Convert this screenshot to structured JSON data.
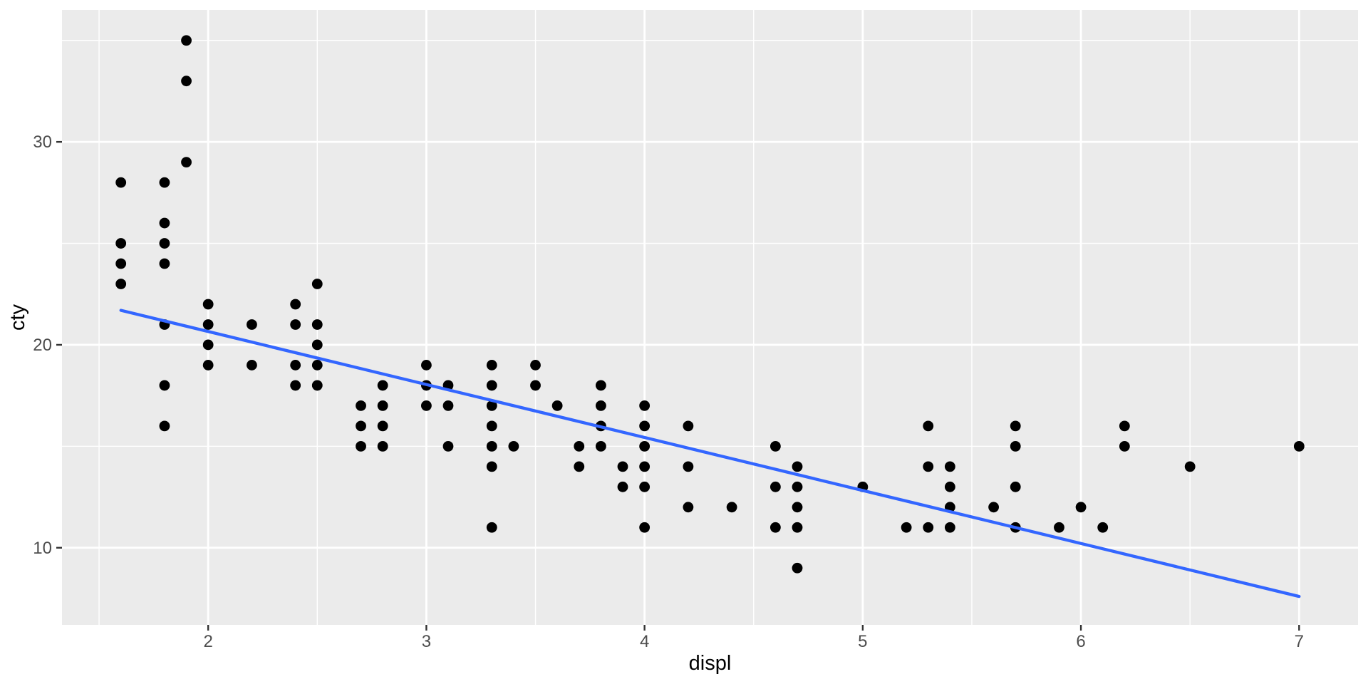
{
  "figure": {
    "background": "#FFFFFF",
    "panel_background": "#EBEBEB",
    "grid_major_color": "#FFFFFF",
    "grid_minor_color": "#FFFFFF",
    "tick_mark_color": "#333333",
    "tick_label_color": "#4D4D4D",
    "axis_title_color": "#000000"
  },
  "chart_data": {
    "type": "scatter",
    "title": "",
    "xlabel": "displ",
    "ylabel": "cty",
    "legend": "none",
    "grid": "on",
    "xlim": [
      1.33,
      7.27
    ],
    "ylim": [
      6.2,
      36.5
    ],
    "x_ticks": [
      2,
      3,
      4,
      5,
      6,
      7
    ],
    "y_ticks": [
      10,
      20,
      30
    ],
    "x_minor_ticks": [
      1.5,
      2.5,
      3.5,
      4.5,
      5.5,
      6.5
    ],
    "y_minor_ticks": [
      15,
      25,
      35
    ],
    "point_color": "#000000",
    "point_radius": 7.4,
    "points": [
      [
        1.6,
        28
      ],
      [
        1.6,
        25
      ],
      [
        1.6,
        24
      ],
      [
        1.6,
        23
      ],
      [
        1.8,
        28
      ],
      [
        1.8,
        26
      ],
      [
        1.8,
        25
      ],
      [
        1.8,
        24
      ],
      [
        1.8,
        21
      ],
      [
        1.8,
        18
      ],
      [
        1.8,
        16
      ],
      [
        1.9,
        35
      ],
      [
        1.9,
        33
      ],
      [
        1.9,
        29
      ],
      [
        2.0,
        22
      ],
      [
        2.0,
        21
      ],
      [
        2.0,
        20
      ],
      [
        2.0,
        19
      ],
      [
        2.2,
        21
      ],
      [
        2.2,
        19
      ],
      [
        2.4,
        22
      ],
      [
        2.4,
        21
      ],
      [
        2.4,
        19
      ],
      [
        2.4,
        18
      ],
      [
        2.5,
        23
      ],
      [
        2.5,
        21
      ],
      [
        2.5,
        20
      ],
      [
        2.5,
        19
      ],
      [
        2.5,
        18
      ],
      [
        2.7,
        17
      ],
      [
        2.7,
        16
      ],
      [
        2.7,
        15
      ],
      [
        2.8,
        18
      ],
      [
        2.8,
        17
      ],
      [
        2.8,
        16
      ],
      [
        2.8,
        15
      ],
      [
        3.0,
        19
      ],
      [
        3.0,
        18
      ],
      [
        3.0,
        17
      ],
      [
        3.1,
        18
      ],
      [
        3.1,
        17
      ],
      [
        3.1,
        15
      ],
      [
        3.3,
        19
      ],
      [
        3.3,
        18
      ],
      [
        3.3,
        17
      ],
      [
        3.3,
        16
      ],
      [
        3.3,
        15
      ],
      [
        3.3,
        14
      ],
      [
        3.3,
        11
      ],
      [
        3.4,
        15
      ],
      [
        3.5,
        19
      ],
      [
        3.5,
        18
      ],
      [
        3.6,
        17
      ],
      [
        3.7,
        15
      ],
      [
        3.7,
        14
      ],
      [
        3.8,
        18
      ],
      [
        3.8,
        17
      ],
      [
        3.8,
        16
      ],
      [
        3.8,
        15
      ],
      [
        3.9,
        14
      ],
      [
        3.9,
        13
      ],
      [
        4.0,
        17
      ],
      [
        4.0,
        16
      ],
      [
        4.0,
        15
      ],
      [
        4.0,
        14
      ],
      [
        4.0,
        13
      ],
      [
        4.0,
        11
      ],
      [
        4.2,
        16
      ],
      [
        4.2,
        14
      ],
      [
        4.2,
        12
      ],
      [
        4.4,
        12
      ],
      [
        4.6,
        15
      ],
      [
        4.6,
        13
      ],
      [
        4.6,
        11
      ],
      [
        4.7,
        14
      ],
      [
        4.7,
        13
      ],
      [
        4.7,
        12
      ],
      [
        4.7,
        11
      ],
      [
        4.7,
        9
      ],
      [
        5.0,
        13
      ],
      [
        5.2,
        11
      ],
      [
        5.3,
        16
      ],
      [
        5.3,
        14
      ],
      [
        5.3,
        11
      ],
      [
        5.4,
        14
      ],
      [
        5.4,
        13
      ],
      [
        5.4,
        12
      ],
      [
        5.4,
        11
      ],
      [
        5.6,
        12
      ],
      [
        5.7,
        16
      ],
      [
        5.7,
        15
      ],
      [
        5.7,
        13
      ],
      [
        5.7,
        11
      ],
      [
        5.9,
        11
      ],
      [
        6.0,
        12
      ],
      [
        6.1,
        11
      ],
      [
        6.2,
        16
      ],
      [
        6.2,
        15
      ],
      [
        6.5,
        14
      ],
      [
        7.0,
        15
      ]
    ],
    "trendline": {
      "type": "linear",
      "color": "#3366FF",
      "width": 4.3,
      "x_start": 1.6,
      "y_start": 21.7,
      "x_end": 7.0,
      "y_end": 7.6
    }
  }
}
